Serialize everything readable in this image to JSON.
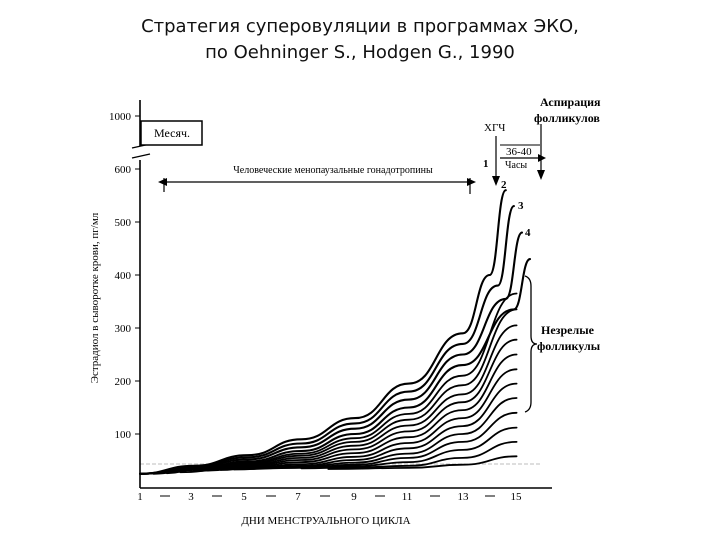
{
  "header": {
    "title_line1": "Стратегия суперовуляции в программах ЭКО,",
    "title_line2": "по Oehninger S., Hodgen G., 1990"
  },
  "chart_data": {
    "type": "line",
    "ylabel": "Эстрадиол в сыворотке крови, пг/мл",
    "xlabel": "ДНИ МЕНСТРУАЛЬНОГО ЦИКЛА",
    "x_ticks": [
      "1",
      "3",
      "5",
      "7",
      "9",
      "11",
      "13",
      "15"
    ],
    "y_ticks": [
      "100",
      "200",
      "300",
      "400",
      "500",
      "600",
      "1000"
    ],
    "xlim": [
      1,
      17
    ],
    "ylim": [
      50,
      600
    ],
    "y_axis_break": true,
    "grid": false,
    "annotations": {
      "menses": "Месяч.",
      "hmg": "Человеческие менопаузальные гонадотропины",
      "hcg": "ХГЧ",
      "hours": "36-40",
      "hours_unit": "Часы",
      "aspiration": [
        "Аспирация",
        "фолликулов"
      ],
      "immature": [
        "Незрелые",
        "фолликулы"
      ],
      "curve_numbers": [
        "1",
        "2",
        "3",
        "4"
      ]
    },
    "series": [
      {
        "x": [
          1,
          3,
          5,
          7,
          9,
          11,
          13,
          14,
          14.6
        ],
        "y": [
          65,
          80,
          100,
          130,
          170,
          235,
          330,
          440,
          600
        ]
      },
      {
        "x": [
          1,
          3,
          5,
          7,
          9,
          11,
          13,
          14.3,
          14.9
        ],
        "y": [
          65,
          78,
          96,
          122,
          160,
          220,
          310,
          420,
          570
        ]
      },
      {
        "x": [
          1,
          3,
          5,
          7,
          9,
          11,
          13,
          14.6,
          15.2
        ],
        "y": [
          65,
          76,
          92,
          115,
          150,
          205,
          290,
          395,
          520
        ]
      },
      {
        "x": [
          1,
          3,
          5,
          7,
          9,
          11,
          13,
          14.9,
          15.5
        ],
        "y": [
          65,
          74,
          88,
          108,
          140,
          190,
          270,
          375,
          470
        ]
      },
      {
        "x": [
          1.5,
          3,
          5,
          7,
          9,
          11,
          13,
          15
        ],
        "y": [
          65,
          73,
          85,
          103,
          132,
          178,
          250,
          405
        ]
      },
      {
        "x": [
          2,
          3,
          5,
          7,
          9,
          11,
          13,
          15
        ],
        "y": [
          66,
          72,
          83,
          99,
          125,
          167,
          232,
          375
        ]
      },
      {
        "x": [
          2.5,
          5,
          7,
          9,
          11,
          13,
          15
        ],
        "y": [
          68,
          81,
          95,
          118,
          156,
          215,
          345
        ]
      },
      {
        "x": [
          3,
          5,
          7,
          9,
          11,
          13,
          15
        ],
        "y": [
          70,
          79,
          91,
          111,
          145,
          200,
          318
        ]
      },
      {
        "x": [
          3.5,
          5,
          7,
          9,
          11,
          13,
          15
        ],
        "y": [
          71,
          77,
          87,
          104,
          134,
          185,
          290
        ]
      },
      {
        "x": [
          4,
          5,
          7,
          9,
          11,
          13,
          15
        ],
        "y": [
          72,
          75,
          83,
          97,
          123,
          170,
          262
        ]
      },
      {
        "x": [
          4.5,
          7,
          9,
          11,
          13,
          15
        ],
        "y": [
          73,
          80,
          91,
          113,
          155,
          235
        ]
      },
      {
        "x": [
          5,
          7,
          9,
          11,
          13,
          15
        ],
        "y": [
          74,
          78,
          86,
          103,
          140,
          208
        ]
      },
      {
        "x": [
          5.5,
          7,
          9,
          11,
          13,
          15
        ],
        "y": [
          75,
          76,
          82,
          95,
          125,
          180
        ]
      },
      {
        "x": [
          6,
          9,
          11,
          13,
          15
        ],
        "y": [
          76,
          79,
          87,
          110,
          152
        ]
      },
      {
        "x": [
          7,
          9,
          11,
          13,
          15
        ],
        "y": [
          75,
          77,
          80,
          95,
          125
        ]
      },
      {
        "x": [
          8,
          11,
          13,
          15
        ],
        "y": [
          74,
          76,
          82,
          98
        ]
      }
    ]
  }
}
